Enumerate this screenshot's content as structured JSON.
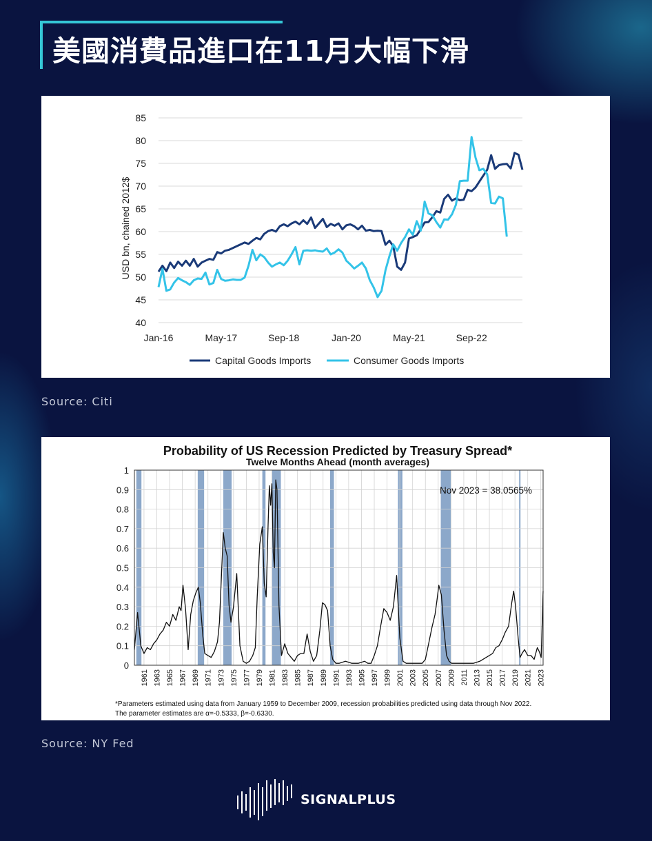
{
  "title": "美國消費品進口在11月大幅下滑",
  "sources": [
    "Source: Citi",
    "Source: NY Fed"
  ],
  "brand": "SIGNALPLUS",
  "colors": {
    "background": "#0a1440",
    "accent": "#35c6d6",
    "capital": "#1a3a78",
    "consumer": "#33c3e8",
    "recession": "#7f9fc4"
  },
  "chart_data": [
    {
      "type": "line",
      "title": "",
      "xlabel": "",
      "ylabel": "USD bn, chained 2012$",
      "ylim": [
        40,
        85
      ],
      "yticks": [
        "85",
        "80",
        "75",
        "70",
        "65",
        "60",
        "55",
        "50",
        "45",
        "40"
      ],
      "xticks": [
        "Jan-16",
        "May-17",
        "Sep-18",
        "Jan-20",
        "May-21",
        "Sep-22"
      ],
      "grid": true,
      "legend": "bottom",
      "x_start": "Jan-16",
      "x_end": "Oct-22",
      "series": [
        {
          "name": "Capital Goods Imports",
          "color": "#1a3a78",
          "values": [
            51.2,
            52.5,
            51.3,
            53.2,
            52.0,
            53.4,
            52.5,
            53.6,
            52.5,
            54.0,
            52.3,
            53.2,
            53.6,
            54.0,
            53.8,
            55.5,
            55.2,
            55.8,
            56.0,
            56.4,
            56.8,
            57.2,
            57.6,
            57.3,
            58.0,
            58.6,
            58.3,
            59.5,
            60.1,
            60.4,
            60.0,
            61.2,
            61.6,
            61.2,
            61.8,
            62.2,
            61.6,
            62.5,
            61.7,
            63.1,
            60.8,
            61.8,
            62.8,
            61.0,
            61.7,
            61.3,
            61.8,
            60.5,
            61.4,
            61.6,
            61.2,
            60.5,
            61.3,
            60.2,
            60.4,
            60.1,
            60.2,
            60.1,
            57.1,
            58.0,
            56.8,
            52.3,
            51.6,
            53.2,
            58.5,
            58.8,
            59.2,
            60.5,
            62.0,
            62.1,
            63.2,
            64.5,
            64.2,
            67.2,
            68.1,
            66.8,
            67.3,
            66.9,
            67.0,
            69.2,
            68.9,
            69.7,
            71.0,
            72.3,
            73.6,
            76.8,
            73.8,
            74.6,
            74.8,
            74.9,
            73.9,
            77.3,
            76.9,
            73.6
          ]
        },
        {
          "name": "Consumer Goods Imports",
          "color": "#33c3e8",
          "values": [
            47.8,
            51.8,
            47.0,
            47.3,
            48.8,
            49.8,
            49.3,
            48.9,
            48.3,
            49.3,
            49.7,
            49.6,
            51.0,
            48.4,
            48.7,
            51.6,
            49.6,
            49.2,
            49.3,
            49.5,
            49.4,
            49.4,
            49.9,
            52.5,
            56.0,
            53.7,
            55.0,
            54.4,
            53.2,
            52.3,
            52.8,
            53.2,
            52.6,
            53.6,
            55.0,
            56.6,
            52.8,
            55.8,
            55.9,
            55.8,
            55.9,
            55.7,
            55.6,
            56.3,
            55.0,
            55.4,
            56.1,
            55.4,
            53.6,
            52.8,
            51.9,
            52.5,
            53.2,
            51.9,
            49.3,
            47.7,
            45.6,
            47.0,
            51.5,
            54.6,
            57.2,
            55.8,
            57.5,
            58.8,
            60.5,
            59.3,
            62.3,
            60.2,
            66.6,
            64.0,
            63.6,
            62.1,
            60.9,
            62.7,
            62.6,
            63.8,
            65.9,
            71.1,
            71.2,
            71.2,
            80.8,
            76.3,
            73.5,
            73.8,
            72.6,
            66.3,
            66.2,
            67.7,
            67.3,
            58.9
          ]
        }
      ]
    },
    {
      "type": "line",
      "title": "Probability of US Recession Predicted by Treasury Spread*",
      "subtitle": "Twelve Months Ahead (month averages)",
      "xlabel": "",
      "ylabel": "",
      "ylim": [
        0,
        1
      ],
      "yticks": [
        "1",
        "0.9",
        "0.8",
        "0.7",
        "0.6",
        "0.5",
        "0.4",
        "0.3",
        "0.2",
        "0.1",
        "0"
      ],
      "xticks": [
        "1961",
        "1963",
        "1965",
        "1967",
        "1969",
        "1971",
        "1973",
        "1975",
        "1977",
        "1979",
        "1981",
        "1983",
        "1985",
        "1987",
        "1989",
        "1991",
        "1993",
        "1995",
        "1997",
        "1999",
        "2001",
        "2003",
        "2005",
        "2007",
        "2009",
        "2011",
        "2013",
        "2015",
        "2017",
        "2019",
        "2021",
        "2023"
      ],
      "xrange": [
        1960,
        2023.9
      ],
      "grid": true,
      "annotation": "Nov 2023 = 38.0565%",
      "footnote_line1": "*Parameters estimated using data from January 1959 to December 2009, recession probabilities predicted using data through Nov 2022.",
      "footnote_line2": "The parameter estimates are α=-0.5333, β=-0.6330.",
      "recessions": [
        [
          1960.3,
          1961.1
        ],
        [
          1969.9,
          1970.9
        ],
        [
          1973.9,
          1975.2
        ],
        [
          1980.0,
          1980.5
        ],
        [
          1981.5,
          1982.9
        ],
        [
          1990.6,
          1991.2
        ],
        [
          2001.2,
          2001.9
        ],
        [
          2007.9,
          2009.5
        ],
        [
          2020.15,
          2020.35
        ]
      ],
      "series": [
        {
          "name": "Recession probability",
          "x": [
            1960.0,
            1960.5,
            1961.0,
            1961.5,
            1962.0,
            1962.5,
            1963.0,
            1963.5,
            1964.0,
            1964.5,
            1965.0,
            1965.5,
            1966.0,
            1966.5,
            1967.0,
            1967.3,
            1967.6,
            1968.0,
            1968.4,
            1968.8,
            1969.2,
            1969.6,
            1970.0,
            1970.3,
            1970.7,
            1971.0,
            1971.5,
            1972.0,
            1972.5,
            1973.0,
            1973.3,
            1973.6,
            1973.9,
            1974.2,
            1974.5,
            1974.8,
            1975.1,
            1975.5,
            1976.0,
            1976.5,
            1977.0,
            1977.5,
            1978.0,
            1978.5,
            1978.9,
            1979.2,
            1979.6,
            1980.0,
            1980.3,
            1980.6,
            1980.9,
            1981.1,
            1981.3,
            1981.5,
            1981.7,
            1981.9,
            1982.1,
            1982.3,
            1982.6,
            1983.0,
            1983.5,
            1984.0,
            1984.5,
            1985.0,
            1985.5,
            1986.0,
            1986.5,
            1987.0,
            1987.5,
            1988.0,
            1988.5,
            1989.0,
            1989.4,
            1989.8,
            1990.2,
            1990.6,
            1991.0,
            1991.5,
            1992.0,
            1993.0,
            1994.0,
            1995.0,
            1996.0,
            1996.5,
            1997.0,
            1997.5,
            1998.0,
            1998.5,
            1999.0,
            1999.5,
            2000.0,
            2000.5,
            2001.0,
            2001.5,
            2002.0,
            2002.5,
            2003.0,
            2004.0,
            2005.0,
            2005.5,
            2006.0,
            2006.5,
            2007.0,
            2007.3,
            2007.6,
            2008.0,
            2008.4,
            2008.8,
            2009.2,
            2009.6,
            2010.0,
            2011.0,
            2012.0,
            2013.0,
            2014.0,
            2015.0,
            2016.0,
            2016.5,
            2017.0,
            2017.5,
            2018.0,
            2018.5,
            2019.0,
            2019.3,
            2019.6,
            2020.0,
            2020.3,
            2020.6,
            2021.0,
            2021.5,
            2022.0,
            2022.5,
            2023.0,
            2023.3,
            2023.6,
            2023.9
          ],
          "values": [
            0.08,
            0.27,
            0.1,
            0.06,
            0.09,
            0.08,
            0.11,
            0.13,
            0.16,
            0.18,
            0.22,
            0.2,
            0.26,
            0.23,
            0.3,
            0.28,
            0.41,
            0.29,
            0.08,
            0.26,
            0.33,
            0.37,
            0.4,
            0.32,
            0.15,
            0.06,
            0.05,
            0.04,
            0.07,
            0.12,
            0.22,
            0.45,
            0.68,
            0.6,
            0.56,
            0.31,
            0.22,
            0.3,
            0.47,
            0.1,
            0.02,
            0.01,
            0.02,
            0.05,
            0.09,
            0.35,
            0.62,
            0.71,
            0.42,
            0.35,
            0.72,
            0.92,
            0.82,
            0.93,
            0.58,
            0.5,
            0.95,
            0.9,
            0.31,
            0.05,
            0.11,
            0.06,
            0.04,
            0.02,
            0.05,
            0.06,
            0.06,
            0.16,
            0.07,
            0.02,
            0.05,
            0.18,
            0.32,
            0.31,
            0.28,
            0.1,
            0.03,
            0.01,
            0.01,
            0.02,
            0.01,
            0.01,
            0.02,
            0.01,
            0.01,
            0.05,
            0.1,
            0.2,
            0.29,
            0.27,
            0.23,
            0.3,
            0.46,
            0.14,
            0.02,
            0.01,
            0.01,
            0.01,
            0.01,
            0.03,
            0.11,
            0.19,
            0.26,
            0.33,
            0.41,
            0.36,
            0.18,
            0.05,
            0.02,
            0.01,
            0.01,
            0.01,
            0.01,
            0.01,
            0.02,
            0.04,
            0.06,
            0.09,
            0.1,
            0.13,
            0.17,
            0.2,
            0.32,
            0.38,
            0.3,
            0.14,
            0.04,
            0.06,
            0.08,
            0.05,
            0.05,
            0.03,
            0.09,
            0.07,
            0.04,
            0.38
          ]
        }
      ]
    }
  ]
}
